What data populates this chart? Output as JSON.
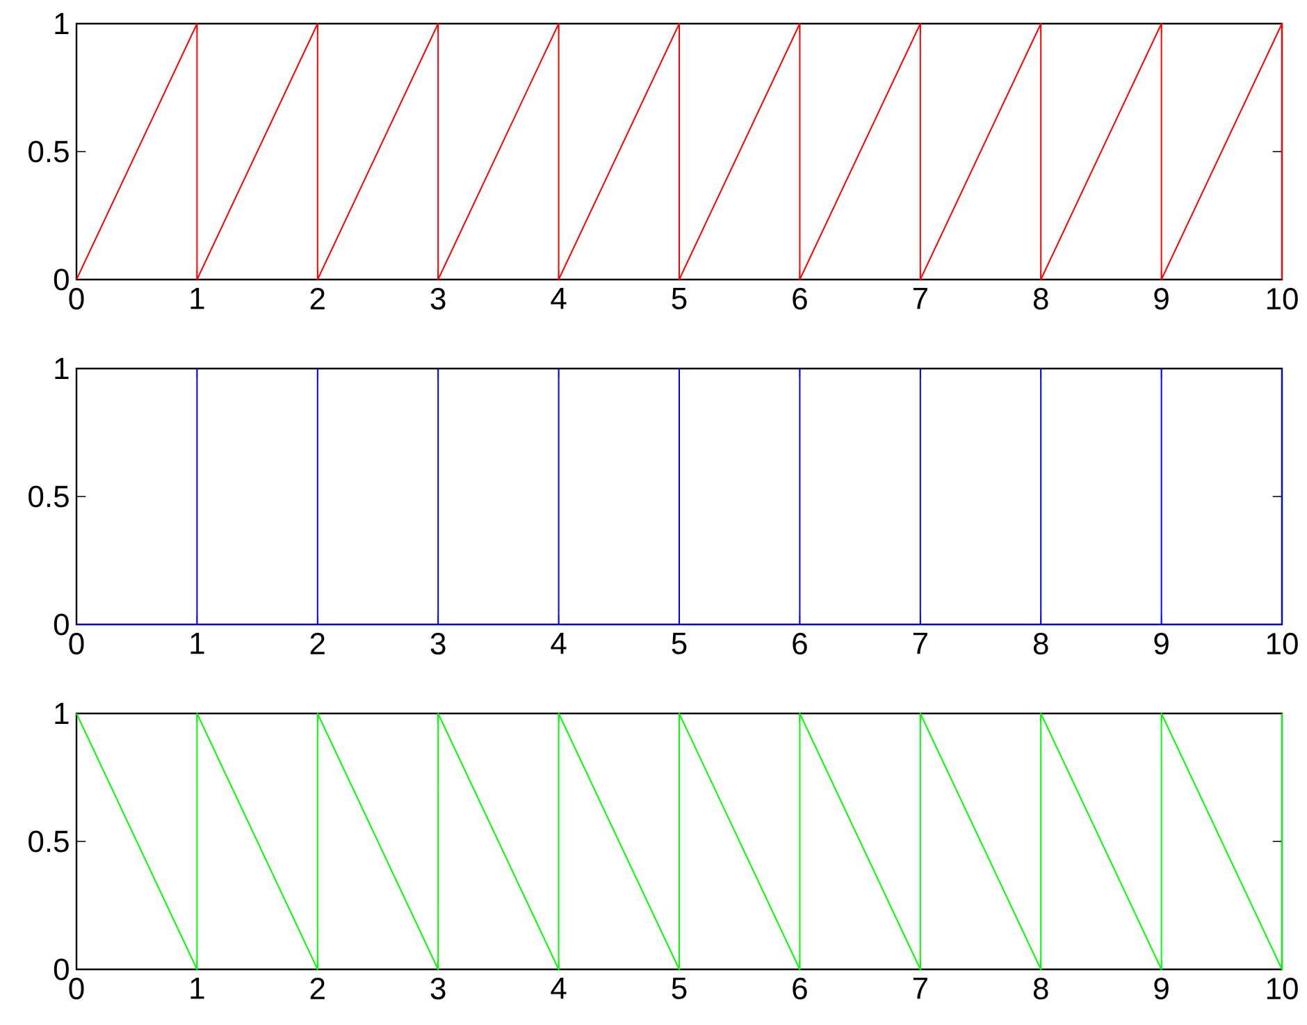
{
  "chart_data": [
    {
      "type": "line",
      "color": "#ff0000",
      "x": [
        0,
        1,
        1,
        2,
        2,
        3,
        3,
        4,
        4,
        5,
        5,
        6,
        6,
        7,
        7,
        8,
        8,
        9,
        9,
        10,
        10
      ],
      "values": [
        0,
        1,
        0,
        1,
        0,
        1,
        0,
        1,
        0,
        1,
        0,
        1,
        0,
        1,
        0,
        1,
        0,
        1,
        0,
        1,
        0
      ],
      "xlim": [
        0,
        10
      ],
      "ylim": [
        0,
        1
      ],
      "xticks": [
        0,
        1,
        2,
        3,
        4,
        5,
        6,
        7,
        8,
        9,
        10
      ],
      "yticks": [
        0,
        0.5,
        1
      ]
    },
    {
      "type": "line",
      "color": "#0000ff",
      "x": [
        0,
        1,
        1,
        1,
        2,
        2,
        2,
        3,
        3,
        3,
        4,
        4,
        4,
        5,
        5,
        5,
        6,
        6,
        6,
        7,
        7,
        7,
        8,
        8,
        8,
        9,
        9,
        9,
        10,
        10
      ],
      "values": [
        0,
        0,
        1,
        0,
        0,
        1,
        0,
        0,
        1,
        0,
        0,
        1,
        0,
        0,
        1,
        0,
        0,
        1,
        0,
        0,
        1,
        0,
        0,
        1,
        0,
        0,
        1,
        0,
        0,
        1
      ],
      "xlim": [
        0,
        10
      ],
      "ylim": [
        0,
        1
      ],
      "xticks": [
        0,
        1,
        2,
        3,
        4,
        5,
        6,
        7,
        8,
        9,
        10
      ],
      "yticks": [
        0,
        0.5,
        1
      ]
    },
    {
      "type": "line",
      "color": "#00ff00",
      "x": [
        0,
        1,
        1,
        2,
        2,
        3,
        3,
        4,
        4,
        5,
        5,
        6,
        6,
        7,
        7,
        8,
        8,
        9,
        9,
        10,
        10
      ],
      "values": [
        1,
        0,
        1,
        0,
        1,
        0,
        1,
        0,
        1,
        0,
        1,
        0,
        1,
        0,
        1,
        0,
        1,
        0,
        1,
        0,
        1
      ],
      "xlim": [
        0,
        10
      ],
      "ylim": [
        0,
        1
      ],
      "xticks": [
        0,
        1,
        2,
        3,
        4,
        5,
        6,
        7,
        8,
        9,
        10
      ],
      "yticks": [
        0,
        0.5,
        1
      ]
    }
  ]
}
